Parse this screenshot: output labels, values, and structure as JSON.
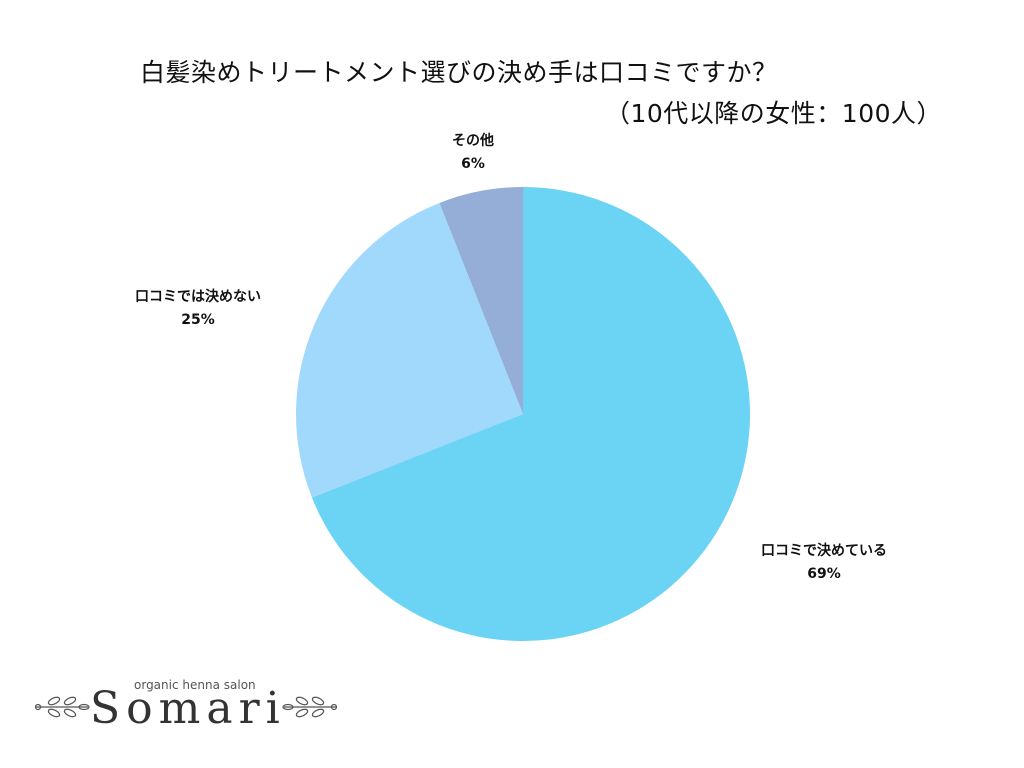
{
  "chart_data": {
    "type": "pie",
    "title": "白髪染めトリートメント選びの決め手は口コミですか？",
    "subtitle": "（10代以降の女性：100人）",
    "slices": [
      {
        "label": "口コミで決めている",
        "value": 69,
        "display": "69%",
        "color": "#6bd3f3"
      },
      {
        "label": "口コミでは決めない",
        "value": 25,
        "display": "25%",
        "color": "#a0d9fb"
      },
      {
        "label": "その他",
        "value": 6,
        "display": "6%",
        "color": "#95aed8"
      }
    ],
    "start": "12 o'clock",
    "direction": "clockwise"
  },
  "logo": {
    "tagline": "organic henna salon",
    "brand": "Somari"
  }
}
